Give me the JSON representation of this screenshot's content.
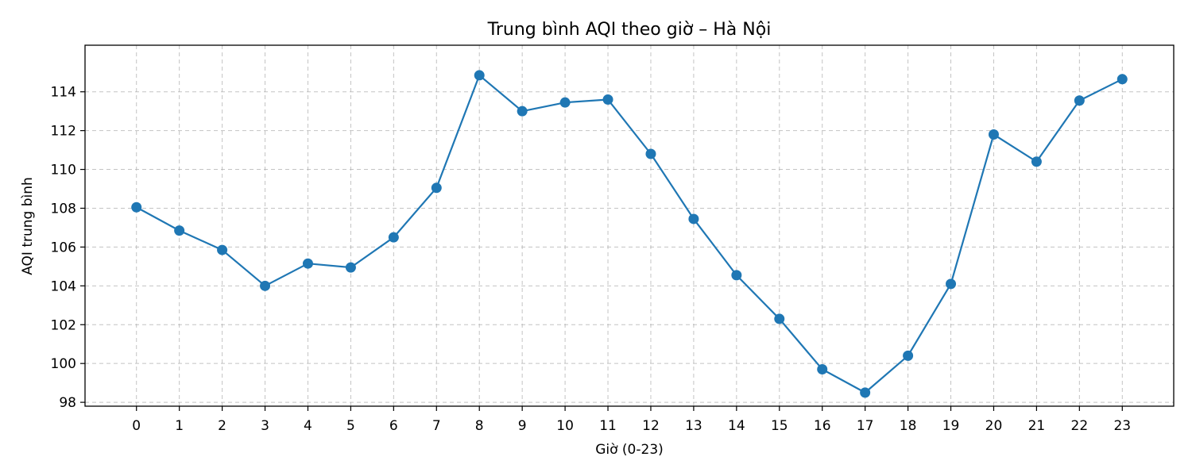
{
  "chart_data": {
    "type": "line",
    "title": "Trung bình AQI theo giờ – Hà Nội",
    "xlabel": "Giờ (0-23)",
    "ylabel": "AQI trung bình",
    "x": [
      0,
      1,
      2,
      3,
      4,
      5,
      6,
      7,
      8,
      9,
      10,
      11,
      12,
      13,
      14,
      15,
      16,
      17,
      18,
      19,
      20,
      21,
      22,
      23
    ],
    "series": [
      {
        "values": [
          108.05,
          106.85,
          105.85,
          104.0,
          105.15,
          104.95,
          106.5,
          109.05,
          114.85,
          113.0,
          113.45,
          113.6,
          110.8,
          107.45,
          104.55,
          102.3,
          99.7,
          98.5,
          100.4,
          104.1,
          111.8,
          110.4,
          113.55,
          114.65
        ]
      }
    ],
    "xticks": [
      0,
      1,
      2,
      3,
      4,
      5,
      6,
      7,
      8,
      9,
      10,
      11,
      12,
      13,
      14,
      15,
      16,
      17,
      18,
      19,
      20,
      21,
      22,
      23
    ],
    "yticks": [
      98,
      100,
      102,
      104,
      106,
      108,
      110,
      112,
      114
    ],
    "xlim": [
      -1.2,
      24.2
    ],
    "ylim": [
      97.8,
      116.4
    ],
    "grid": true,
    "line_color": "#1f77b4",
    "marker": "circle"
  }
}
